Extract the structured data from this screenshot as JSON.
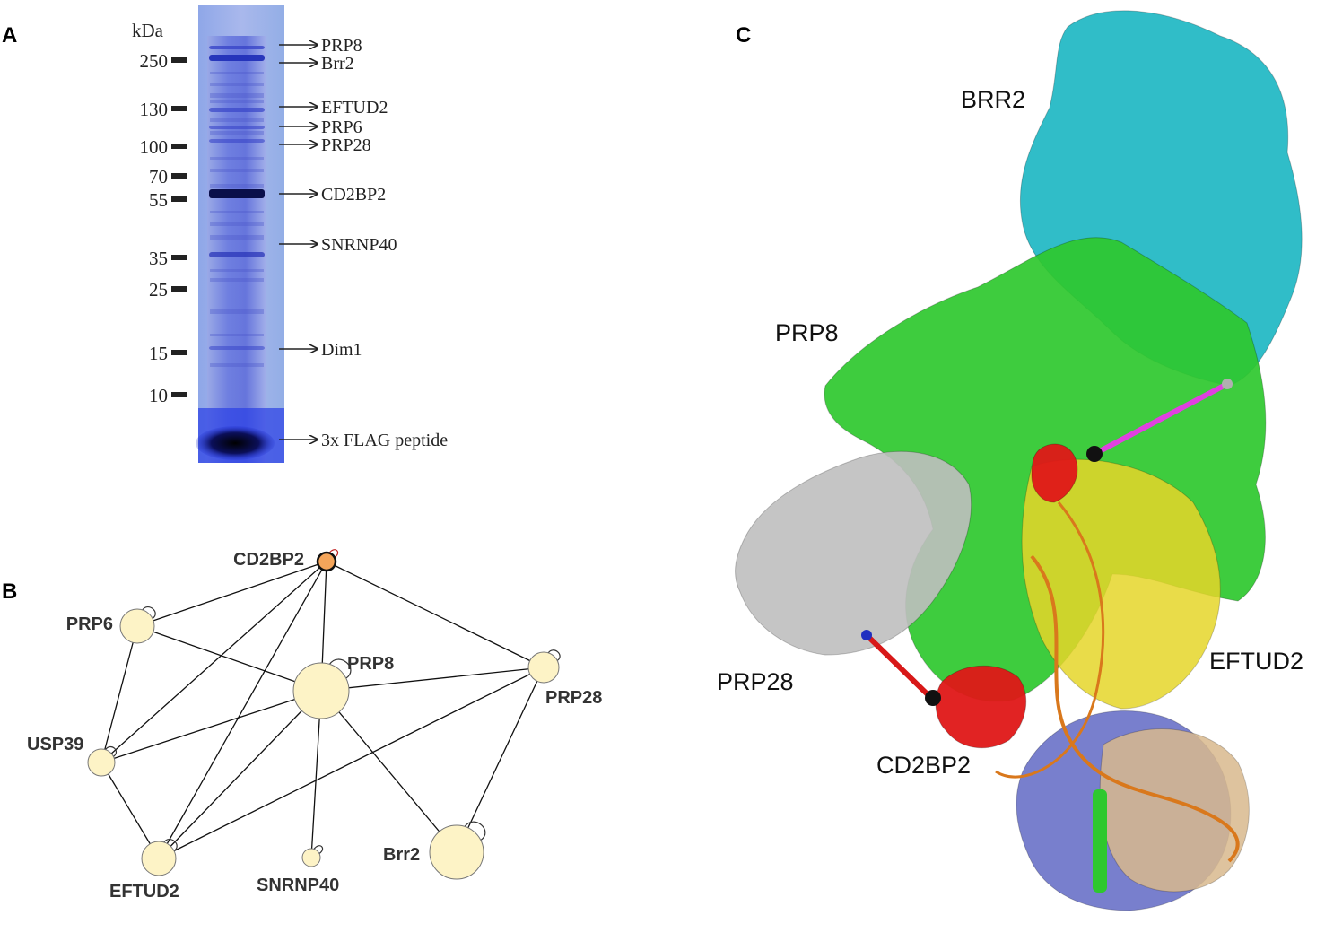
{
  "panels": {
    "a": {
      "letter": "A"
    },
    "b": {
      "letter": "B"
    },
    "c": {
      "letter": "C"
    }
  },
  "gel": {
    "unit_label": "kDa",
    "ladder": [
      {
        "label": "250",
        "kda": 250
      },
      {
        "label": "130",
        "kda": 130
      },
      {
        "label": "100",
        "kda": 100
      },
      {
        "label": "70",
        "kda": 70
      },
      {
        "label": "55",
        "kda": 55
      },
      {
        "label": "35",
        "kda": 35
      },
      {
        "label": "25",
        "kda": 25
      },
      {
        "label": "15",
        "kda": 15
      },
      {
        "label": "10",
        "kda": 10
      }
    ],
    "bands": [
      {
        "label": "PRP8"
      },
      {
        "label": "Brr2"
      },
      {
        "label": "EFTUD2"
      },
      {
        "label": "PRP6"
      },
      {
        "label": "PRP28"
      },
      {
        "label": "CD2BP2"
      },
      {
        "label": "SNRNP40"
      },
      {
        "label": "Dim1"
      },
      {
        "label": "3x FLAG peptide"
      }
    ]
  },
  "network": {
    "nodes": [
      {
        "id": "CD2BP2",
        "label": "CD2BP2",
        "color": "#f5a55a"
      },
      {
        "id": "PRP6",
        "label": "PRP6",
        "color": "#fdf3c6"
      },
      {
        "id": "PRP8",
        "label": "PRP8",
        "color": "#fdf3c6"
      },
      {
        "id": "PRP28",
        "label": "PRP28",
        "color": "#fdf3c6"
      },
      {
        "id": "USP39",
        "label": "USP39",
        "color": "#fdf3c6"
      },
      {
        "id": "EFTUD2",
        "label": "EFTUD2",
        "color": "#fdf3c6"
      },
      {
        "id": "SNRNP40",
        "label": "SNRNP40",
        "color": "#fdf3c6"
      },
      {
        "id": "Brr2",
        "label": "Brr2",
        "color": "#fdf3c6"
      }
    ],
    "edges": [
      [
        "CD2BP2",
        "PRP6"
      ],
      [
        "CD2BP2",
        "PRP8"
      ],
      [
        "CD2BP2",
        "PRP28"
      ],
      [
        "CD2BP2",
        "USP39"
      ],
      [
        "CD2BP2",
        "EFTUD2"
      ],
      [
        "PRP6",
        "PRP8"
      ],
      [
        "PRP6",
        "USP39"
      ],
      [
        "PRP8",
        "USP39"
      ],
      [
        "PRP8",
        "PRP28"
      ],
      [
        "PRP8",
        "EFTUD2"
      ],
      [
        "PRP8",
        "SNRNP40"
      ],
      [
        "PRP8",
        "Brr2"
      ],
      [
        "PRP28",
        "EFTUD2"
      ],
      [
        "PRP28",
        "Brr2"
      ],
      [
        "USP39",
        "EFTUD2"
      ]
    ]
  },
  "structure": {
    "labels": [
      {
        "id": "brr2",
        "text": "BRR2"
      },
      {
        "id": "prp8",
        "text": "PRP8"
      },
      {
        "id": "prp28",
        "text": "PRP28"
      },
      {
        "id": "eftud2",
        "text": "EFTUD2"
      },
      {
        "id": "cd2bp2",
        "text": "CD2BP2"
      }
    ],
    "colors": {
      "brr2": "#1fb8c4",
      "prp8": "#2ec82e",
      "prp28": "#bfbfbf",
      "eftud2": "#e6d62a",
      "cd2bp2": "#e01818",
      "rna": "#d9781c",
      "blue_domain": "#6a72c8",
      "tan_domain": "#d9b98e",
      "crosslink_magenta": "#e040e0",
      "crosslink_red": "#d81818"
    }
  }
}
